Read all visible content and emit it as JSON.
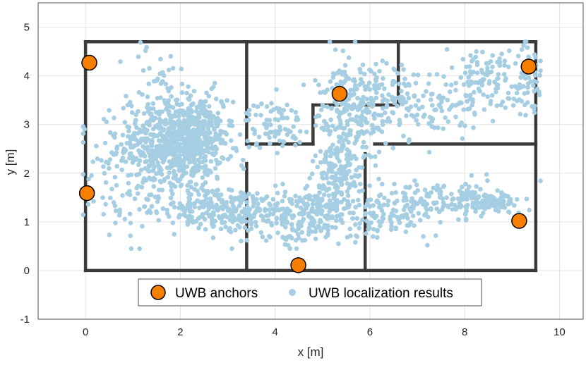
{
  "chart_data": {
    "type": "scatter",
    "title": "",
    "xlabel": "x [m]",
    "ylabel": "y [m]",
    "xlim": [
      -1,
      10.5
    ],
    "ylim": [
      -1,
      5.5
    ],
    "xticks": [
      0,
      2,
      4,
      6,
      8,
      10
    ],
    "yticks": [
      -1,
      0,
      1,
      2,
      3,
      4,
      5
    ],
    "grid": true,
    "legend_position": "bottom-center",
    "legend": [
      "UWB anchors",
      "UWB localization results"
    ],
    "colors": {
      "anchors": "#f77f00",
      "results": "#a6cee3",
      "walls": "#3a3a3a"
    },
    "walls": [
      [
        [
          0,
          0
        ],
        [
          9.5,
          0
        ]
      ],
      [
        [
          0,
          4.7
        ],
        [
          9.5,
          4.7
        ]
      ],
      [
        [
          0,
          0
        ],
        [
          0,
          4.7
        ]
      ],
      [
        [
          9.5,
          0
        ],
        [
          9.5,
          4.7
        ]
      ],
      [
        [
          3.4,
          0
        ],
        [
          3.4,
          2.2
        ]
      ],
      [
        [
          3.4,
          2.6
        ],
        [
          3.4,
          4.7
        ]
      ],
      [
        [
          3.4,
          2.6
        ],
        [
          4.8,
          2.6
        ]
      ],
      [
        [
          4.8,
          2.6
        ],
        [
          4.8,
          3.4
        ]
      ],
      [
        [
          4.8,
          3.4
        ],
        [
          5.35,
          3.4
        ]
      ],
      [
        [
          5.9,
          3.4
        ],
        [
          6.6,
          3.4
        ]
      ],
      [
        [
          6.6,
          3.4
        ],
        [
          6.6,
          4.7
        ]
      ],
      [
        [
          6.1,
          2.6
        ],
        [
          9.5,
          2.6
        ]
      ],
      [
        [
          5.9,
          0
        ],
        [
          5.9,
          2.4
        ]
      ],
      [
        [
          5.9,
          1.1
        ],
        [
          5.9,
          1.8
        ]
      ]
    ],
    "anchors": [
      {
        "x": 0.08,
        "y": 4.27
      },
      {
        "x": 0.03,
        "y": 1.59
      },
      {
        "x": 4.49,
        "y": 0.11
      },
      {
        "x": 5.36,
        "y": 3.63
      },
      {
        "x": 9.35,
        "y": 4.19
      },
      {
        "x": 9.15,
        "y": 1.02
      }
    ],
    "localization_clusters": [
      {
        "cx": 1.8,
        "cy": 2.6,
        "sx": 0.55,
        "sy": 0.45,
        "n": 600
      },
      {
        "cx": 2.4,
        "cy": 2.75,
        "sx": 0.35,
        "sy": 0.45,
        "n": 200
      },
      {
        "cx": 1.5,
        "cy": 3.8,
        "sx": 0.3,
        "sy": 0.5,
        "n": 40
      },
      {
        "cx": 0.5,
        "cy": 2.0,
        "sx": 0.5,
        "sy": 0.8,
        "n": 50
      },
      {
        "cx": 2.3,
        "cy": 1.3,
        "sx": 0.6,
        "sy": 0.25,
        "n": 150
      },
      {
        "cx": 3.3,
        "cy": 1.25,
        "sx": 0.45,
        "sy": 0.2,
        "n": 100
      },
      {
        "cx": 4.3,
        "cy": 1.2,
        "sx": 0.5,
        "sy": 0.25,
        "n": 140
      },
      {
        "cx": 5.1,
        "cy": 1.35,
        "sx": 0.3,
        "sy": 0.3,
        "n": 120
      },
      {
        "cx": 5.4,
        "cy": 2.2,
        "sx": 0.25,
        "sy": 0.5,
        "n": 160
      },
      {
        "cx": 5.6,
        "cy": 3.1,
        "sx": 0.4,
        "sy": 0.4,
        "n": 120
      },
      {
        "cx": 5.5,
        "cy": 3.9,
        "sx": 0.3,
        "sy": 0.35,
        "n": 60
      },
      {
        "cx": 4.0,
        "cy": 3.0,
        "sx": 0.3,
        "sy": 0.25,
        "n": 80
      },
      {
        "cx": 6.3,
        "cy": 3.7,
        "sx": 0.4,
        "sy": 0.4,
        "n": 70
      },
      {
        "cx": 7.2,
        "cy": 3.3,
        "sx": 0.6,
        "sy": 0.3,
        "n": 100
      },
      {
        "cx": 8.4,
        "cy": 3.9,
        "sx": 0.6,
        "sy": 0.35,
        "n": 120
      },
      {
        "cx": 9.35,
        "cy": 4.0,
        "sx": 0.12,
        "sy": 0.35,
        "n": 50
      },
      {
        "cx": 6.7,
        "cy": 1.3,
        "sx": 0.45,
        "sy": 0.3,
        "n": 90
      },
      {
        "cx": 7.8,
        "cy": 1.45,
        "sx": 0.5,
        "sy": 0.18,
        "n": 110
      },
      {
        "cx": 8.6,
        "cy": 1.4,
        "sx": 0.3,
        "sy": 0.12,
        "n": 80
      },
      {
        "cx": 4.3,
        "cy": 0.75,
        "sx": 0.4,
        "sy": 0.2,
        "n": 30
      },
      {
        "cx": 6.0,
        "cy": 1.0,
        "sx": 0.35,
        "sy": 0.2,
        "n": 40
      }
    ]
  }
}
